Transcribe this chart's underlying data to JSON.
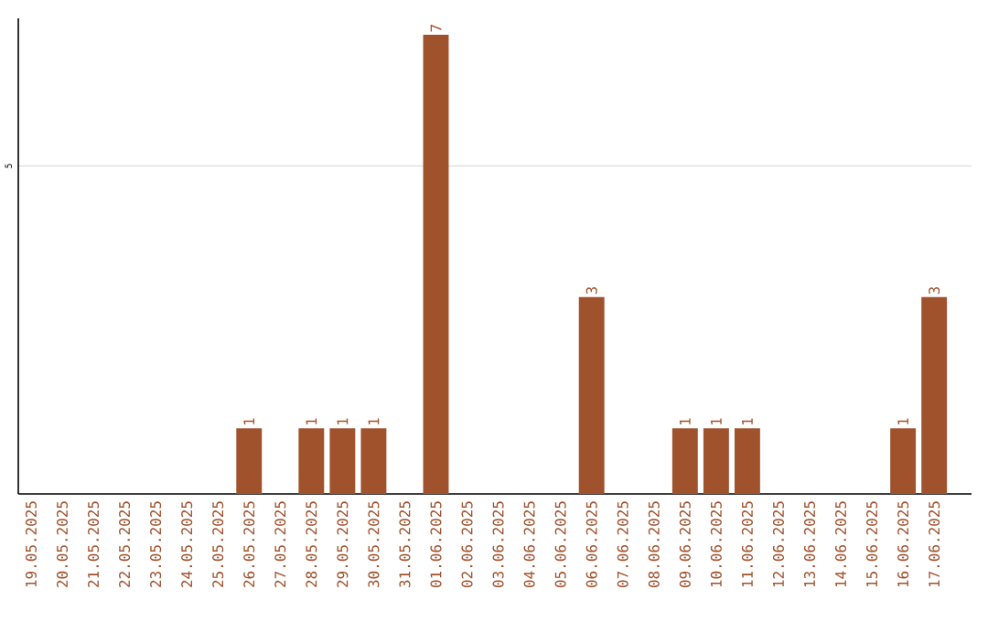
{
  "chart_data": {
    "type": "bar",
    "categories": [
      "19.05.2025",
      "20.05.2025",
      "21.05.2025",
      "22.05.2025",
      "23.05.2025",
      "24.05.2025",
      "25.05.2025",
      "26.05.2025",
      "27.05.2025",
      "28.05.2025",
      "29.05.2025",
      "30.05.2025",
      "31.05.2025",
      "01.06.2025",
      "02.06.2025",
      "03.06.2025",
      "04.06.2025",
      "05.06.2025",
      "06.06.2025",
      "07.06.2025",
      "08.06.2025",
      "09.06.2025",
      "10.06.2025",
      "11.06.2025",
      "12.06.2025",
      "13.06.2025",
      "14.06.2025",
      "15.06.2025",
      "16.06.2025",
      "17.06.2025"
    ],
    "values": [
      0,
      0,
      0,
      0,
      0,
      0,
      0,
      1,
      0,
      1,
      1,
      1,
      0,
      7,
      0,
      0,
      0,
      0,
      3,
      0,
      0,
      1,
      1,
      1,
      0,
      0,
      0,
      0,
      1,
      3
    ],
    "value_labels": [
      null,
      null,
      null,
      null,
      null,
      null,
      null,
      "1",
      null,
      "1",
      "1",
      "1",
      null,
      "7",
      null,
      null,
      null,
      null,
      "3",
      null,
      null,
      "1",
      "1",
      "1",
      null,
      null,
      null,
      null,
      "1",
      "3"
    ],
    "color": "#a0522d",
    "ylim": [
      0,
      7.25
    ],
    "yticks": [
      5
    ],
    "grid": "y"
  }
}
